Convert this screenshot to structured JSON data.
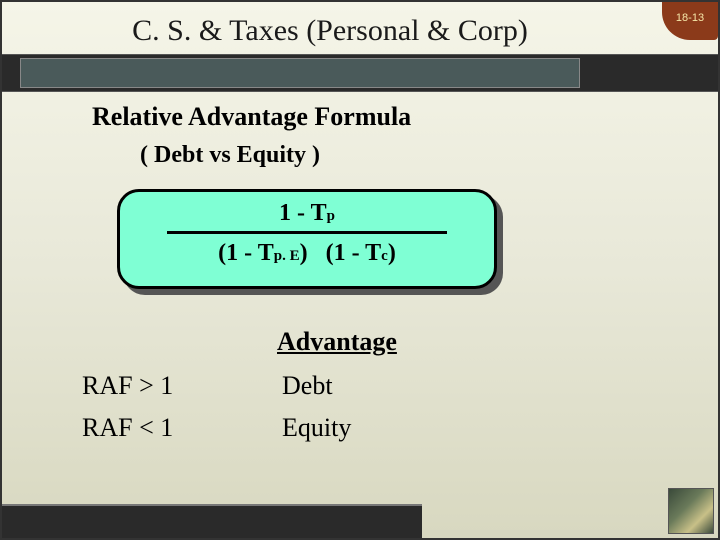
{
  "page_number": "18-13",
  "title": "C. S. & Taxes (Personal & Corp)",
  "subtitle": "Relative Advantage Formula",
  "subtitle2": "( Debt vs Equity )",
  "formula": {
    "background_color": "#7fffd4",
    "border_color": "#000000",
    "shadow_color": "#555555",
    "numerator_main": "1 - T",
    "numerator_sub": "p",
    "denom_left_main": "(1 - T",
    "denom_left_sub": "p. E",
    "denom_left_close": ")",
    "denom_right_main": "(1 - T",
    "denom_right_sub": "c",
    "denom_right_close": ")"
  },
  "advantage": {
    "header": "Advantage",
    "rows": [
      {
        "cond": "RAF > 1",
        "result": "Debt"
      },
      {
        "cond": "RAF < 1",
        "result": "Equity"
      }
    ]
  },
  "colors": {
    "slide_bg_top": "#f5f5e8",
    "slide_bg_bottom": "#d8d8c0",
    "band": "#2a2a2a",
    "badge": "#8b3a1a",
    "badge_text": "#f5e6a8"
  }
}
